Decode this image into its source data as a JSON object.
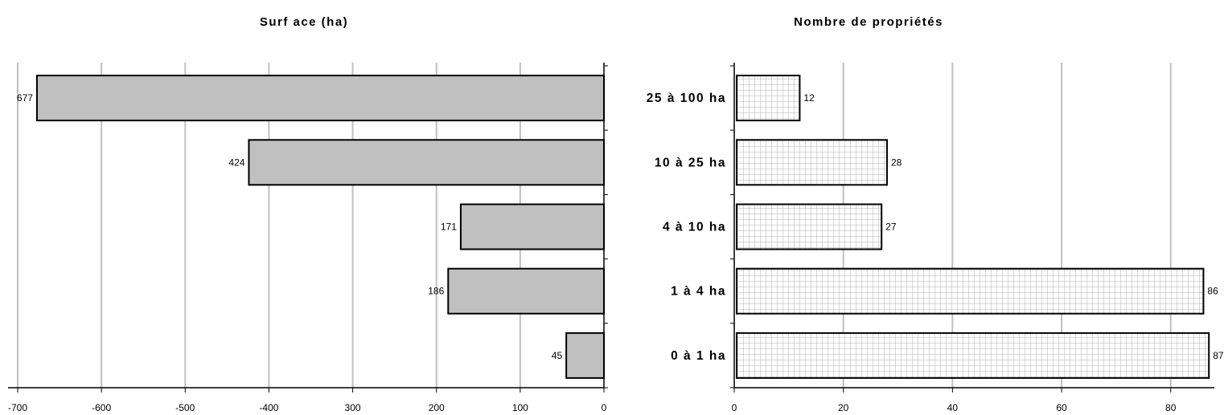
{
  "chart_data": [
    {
      "type": "bar",
      "orientation": "horizontal",
      "title": "Surf ace (ha)",
      "categories": [
        "25 à 100 ha",
        "10 à 25 ha",
        "4 à 10 ha",
        "1 à 4 ha",
        "0 à 1 ha"
      ],
      "values": [
        677,
        424,
        171,
        186,
        45
      ],
      "xlim": [
        -700,
        0
      ],
      "tick_labels": [
        "-700",
        "-600",
        "-500",
        "-400",
        "-300",
        "-200",
        "-100",
        "0"
      ],
      "tick_display": [
        "-700",
        "-600",
        "-500",
        "-400",
        "300",
        "200",
        "100",
        "0"
      ],
      "xlabel": "",
      "ylabel": "",
      "grid": true,
      "bar_color": "#c0c0c0",
      "bar_pattern": "solid"
    },
    {
      "type": "bar",
      "orientation": "horizontal",
      "title": "Nombre de propriétés",
      "categories": [
        "25 à 100 ha",
        "10 à 25 ha",
        "4 à 10 ha",
        "1 à 4 ha",
        "0 à 1 ha"
      ],
      "values": [
        12,
        28,
        27,
        86,
        87
      ],
      "xlim": [
        0,
        88
      ],
      "tick_labels": [
        "0",
        "20",
        "40",
        "60",
        "80"
      ],
      "xlabel": "",
      "ylabel": "",
      "grid": true,
      "bar_color": "#ffffff",
      "bar_pattern": "grid-hatch",
      "pattern_color": "#b0b0b0"
    }
  ]
}
